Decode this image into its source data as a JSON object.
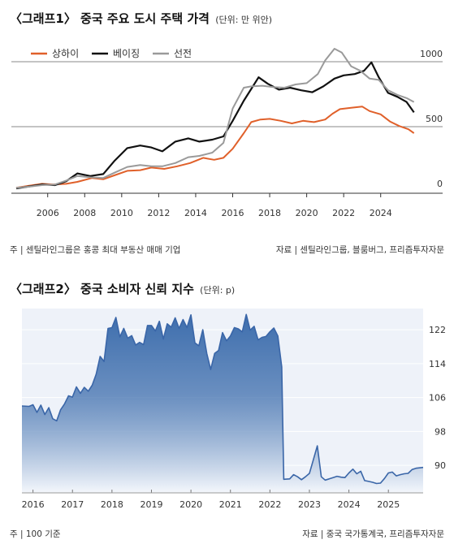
{
  "chart_data": [
    {
      "type": "line",
      "title": "〈그래프1〉 중국 주요 도시 주택 가격",
      "unit": "(단위: 만 위안)",
      "x_ticks": [
        "2006",
        "2008",
        "2010",
        "2012",
        "2014",
        "2016",
        "2018",
        "2020",
        "2022",
        "2024"
      ],
      "y_ticks": [
        "1000",
        "500",
        "0"
      ],
      "ylim": [
        0,
        1150
      ],
      "xlim": [
        2004.3,
        2025.9
      ],
      "grid": "horizontal at 500 and 1000",
      "legend_position": "top-left",
      "series": [
        {
          "name": "상하이",
          "color": "#e0602a",
          "points": [
            [
              2004.3,
              30
            ],
            [
              2005.0,
              45
            ],
            [
              2005.7,
              60
            ],
            [
              2006.3,
              55
            ],
            [
              2007.0,
              60
            ],
            [
              2007.6,
              75
            ],
            [
              2008.4,
              105
            ],
            [
              2009.0,
              95
            ],
            [
              2009.6,
              125
            ],
            [
              2010.3,
              160
            ],
            [
              2011.0,
              165
            ],
            [
              2011.6,
              185
            ],
            [
              2012.3,
              175
            ],
            [
              2013.0,
              195
            ],
            [
              2013.7,
              220
            ],
            [
              2014.4,
              260
            ],
            [
              2015.0,
              245
            ],
            [
              2015.5,
              260
            ],
            [
              2016.0,
              330
            ],
            [
              2016.6,
              450
            ],
            [
              2017.0,
              535
            ],
            [
              2017.5,
              555
            ],
            [
              2018.0,
              560
            ],
            [
              2018.6,
              545
            ],
            [
              2019.2,
              525
            ],
            [
              2019.8,
              545
            ],
            [
              2020.4,
              535
            ],
            [
              2021.0,
              555
            ],
            [
              2021.4,
              600
            ],
            [
              2021.8,
              635
            ],
            [
              2022.4,
              645
            ],
            [
              2023.0,
              655
            ],
            [
              2023.4,
              620
            ],
            [
              2024.0,
              595
            ],
            [
              2024.5,
              540
            ],
            [
              2025.0,
              505
            ],
            [
              2025.5,
              480
            ],
            [
              2025.8,
              450
            ]
          ]
        },
        {
          "name": "베이징",
          "color": "#111111",
          "points": [
            [
              2004.3,
              25
            ],
            [
              2005.0,
              40
            ],
            [
              2005.7,
              55
            ],
            [
              2006.4,
              50
            ],
            [
              2007.0,
              80
            ],
            [
              2007.6,
              140
            ],
            [
              2008.3,
              120
            ],
            [
              2009.0,
              135
            ],
            [
              2009.6,
              235
            ],
            [
              2010.3,
              335
            ],
            [
              2011.0,
              355
            ],
            [
              2011.6,
              340
            ],
            [
              2012.2,
              310
            ],
            [
              2012.9,
              385
            ],
            [
              2013.6,
              410
            ],
            [
              2014.2,
              385
            ],
            [
              2014.9,
              400
            ],
            [
              2015.5,
              425
            ],
            [
              2016.0,
              545
            ],
            [
              2016.6,
              700
            ],
            [
              2017.0,
              790
            ],
            [
              2017.4,
              880
            ],
            [
              2017.9,
              830
            ],
            [
              2018.5,
              785
            ],
            [
              2019.1,
              800
            ],
            [
              2019.7,
              780
            ],
            [
              2020.3,
              765
            ],
            [
              2020.9,
              810
            ],
            [
              2021.5,
              870
            ],
            [
              2022.0,
              895
            ],
            [
              2022.6,
              905
            ],
            [
              2023.1,
              930
            ],
            [
              2023.5,
              995
            ],
            [
              2023.9,
              880
            ],
            [
              2024.4,
              760
            ],
            [
              2024.9,
              730
            ],
            [
              2025.4,
              690
            ],
            [
              2025.8,
              610
            ]
          ]
        },
        {
          "name": "선전",
          "color": "#9a9a9a",
          "points": [
            [
              2004.3,
              30
            ],
            [
              2005.0,
              38
            ],
            [
              2005.7,
              50
            ],
            [
              2006.4,
              55
            ],
            [
              2007.0,
              85
            ],
            [
              2007.6,
              120
            ],
            [
              2008.3,
              110
            ],
            [
              2009.0,
              105
            ],
            [
              2009.6,
              145
            ],
            [
              2010.3,
              190
            ],
            [
              2011.0,
              205
            ],
            [
              2011.6,
              195
            ],
            [
              2012.2,
              195
            ],
            [
              2012.9,
              220
            ],
            [
              2013.6,
              265
            ],
            [
              2014.2,
              275
            ],
            [
              2014.9,
              300
            ],
            [
              2015.5,
              375
            ],
            [
              2016.0,
              640
            ],
            [
              2016.6,
              800
            ],
            [
              2017.0,
              810
            ],
            [
              2017.6,
              815
            ],
            [
              2018.2,
              805
            ],
            [
              2018.8,
              800
            ],
            [
              2019.4,
              825
            ],
            [
              2020.0,
              835
            ],
            [
              2020.6,
              905
            ],
            [
              2021.0,
              1010
            ],
            [
              2021.5,
              1100
            ],
            [
              2021.9,
              1070
            ],
            [
              2022.4,
              965
            ],
            [
              2022.9,
              930
            ],
            [
              2023.4,
              870
            ],
            [
              2023.9,
              860
            ],
            [
              2024.4,
              780
            ],
            [
              2024.9,
              745
            ],
            [
              2025.4,
              720
            ],
            [
              2025.8,
              690
            ]
          ]
        }
      ],
      "footer_left": "주 | 센틸라인그룹은 홍콩 최대 부동산 매매 기업",
      "footer_right": "자료 | 센틸라인그룹, 블룸버그, 프리즘투자자문"
    },
    {
      "type": "area",
      "title": "〈그래프2〉 중국 소비자 신뢰 지수",
      "unit": "(단위: p)",
      "x_ticks": [
        "2016",
        "2017",
        "2018",
        "2019",
        "2020",
        "2021",
        "2022",
        "2023",
        "2024",
        "2025"
      ],
      "y_ticks": [
        "122",
        "114",
        "106",
        "98",
        "90"
      ],
      "ylim": [
        83.5,
        127
      ],
      "xlim": [
        2015.72,
        2025.88
      ],
      "baseline": 83.5,
      "fill_top": "#3e6ead",
      "fill_bottom": "#f4f7fc",
      "line_color": "#3a66a8",
      "series": [
        {
          "name": "",
          "points": [
            [
              2015.72,
              104.0
            ],
            [
              2015.9,
              103.9
            ],
            [
              2016.0,
              104.3
            ],
            [
              2016.1,
              102.5
            ],
            [
              2016.2,
              104.2
            ],
            [
              2016.3,
              102.0
            ],
            [
              2016.4,
              103.6
            ],
            [
              2016.5,
              101.0
            ],
            [
              2016.6,
              100.5
            ],
            [
              2016.7,
              103.1
            ],
            [
              2016.8,
              104.5
            ],
            [
              2016.9,
              106.4
            ],
            [
              2017.0,
              106.1
            ],
            [
              2017.1,
              108.5
            ],
            [
              2017.2,
              107.0
            ],
            [
              2017.3,
              108.4
            ],
            [
              2017.4,
              107.5
            ],
            [
              2017.5,
              108.9
            ],
            [
              2017.6,
              111.5
            ],
            [
              2017.7,
              115.7
            ],
            [
              2017.8,
              114.5
            ],
            [
              2017.9,
              122.3
            ],
            [
              2018.0,
              122.5
            ],
            [
              2018.1,
              124.9
            ],
            [
              2018.2,
              120.3
            ],
            [
              2018.3,
              122.3
            ],
            [
              2018.4,
              120.0
            ],
            [
              2018.5,
              120.6
            ],
            [
              2018.6,
              118.4
            ],
            [
              2018.7,
              119.0
            ],
            [
              2018.8,
              118.5
            ],
            [
              2018.9,
              123.0
            ],
            [
              2019.0,
              123.0
            ],
            [
              2019.1,
              121.7
            ],
            [
              2019.2,
              124.0
            ],
            [
              2019.3,
              119.8
            ],
            [
              2019.4,
              123.4
            ],
            [
              2019.5,
              122.6
            ],
            [
              2019.6,
              124.8
            ],
            [
              2019.7,
              122.3
            ],
            [
              2019.8,
              124.4
            ],
            [
              2019.9,
              122.5
            ],
            [
              2020.0,
              125.5
            ],
            [
              2020.1,
              118.9
            ],
            [
              2020.2,
              118.2
            ],
            [
              2020.3,
              122.0
            ],
            [
              2020.4,
              116.4
            ],
            [
              2020.5,
              112.6
            ],
            [
              2020.6,
              116.4
            ],
            [
              2020.7,
              117.1
            ],
            [
              2020.8,
              121.3
            ],
            [
              2020.9,
              119.4
            ],
            [
              2021.0,
              120.5
            ],
            [
              2021.1,
              122.5
            ],
            [
              2021.2,
              122.2
            ],
            [
              2021.3,
              121.5
            ],
            [
              2021.4,
              125.6
            ],
            [
              2021.5,
              121.9
            ],
            [
              2021.6,
              122.8
            ],
            [
              2021.7,
              119.6
            ],
            [
              2021.8,
              120.2
            ],
            [
              2021.9,
              120.4
            ],
            [
              2022.0,
              121.5
            ],
            [
              2022.1,
              122.4
            ],
            [
              2022.2,
              120.5
            ],
            [
              2022.3,
              113.2
            ],
            [
              2022.35,
              86.7
            ],
            [
              2022.5,
              86.8
            ],
            [
              2022.6,
              87.8
            ],
            [
              2022.7,
              87.3
            ],
            [
              2022.8,
              86.6
            ],
            [
              2022.9,
              87.3
            ],
            [
              2023.0,
              88.1
            ],
            [
              2023.1,
              91.3
            ],
            [
              2023.2,
              94.6
            ],
            [
              2023.3,
              87.3
            ],
            [
              2023.4,
              86.5
            ],
            [
              2023.5,
              86.8
            ],
            [
              2023.6,
              87.1
            ],
            [
              2023.7,
              87.4
            ],
            [
              2023.8,
              87.2
            ],
            [
              2023.9,
              87.1
            ],
            [
              2024.0,
              88.2
            ],
            [
              2024.1,
              89.1
            ],
            [
              2024.2,
              88.0
            ],
            [
              2024.3,
              88.6
            ],
            [
              2024.4,
              86.4
            ],
            [
              2024.5,
              86.2
            ],
            [
              2024.6,
              86.0
            ],
            [
              2024.7,
              85.7
            ],
            [
              2024.8,
              85.8
            ],
            [
              2024.9,
              86.9
            ],
            [
              2025.0,
              88.2
            ],
            [
              2025.1,
              88.4
            ],
            [
              2025.2,
              87.5
            ],
            [
              2025.3,
              87.8
            ],
            [
              2025.4,
              88.0
            ],
            [
              2025.5,
              88.1
            ],
            [
              2025.6,
              89.0
            ],
            [
              2025.7,
              89.3
            ],
            [
              2025.88,
              89.5
            ]
          ]
        }
      ],
      "footer_left": "주 | 100 기준",
      "footer_right": "자료 | 중국 국가통계국, 프리즘투자자문"
    }
  ]
}
